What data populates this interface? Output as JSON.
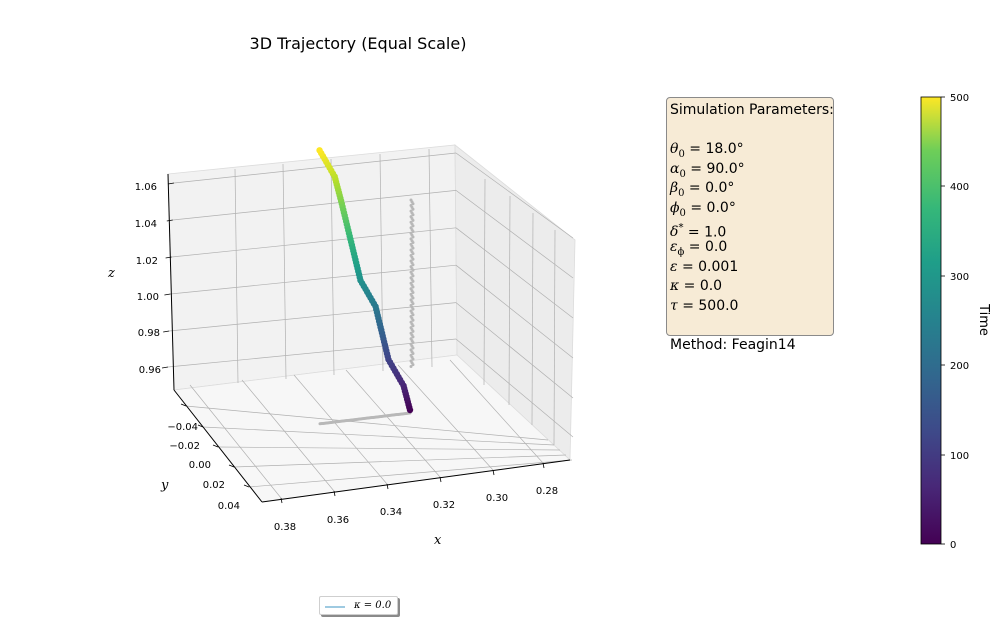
{
  "chart_data": {
    "type": "scatter",
    "projection": "3d",
    "title": "3D Trajectory (Equal Scale)",
    "xlabel": "x",
    "ylabel": "y",
    "zlabel": "z",
    "x_ticks": [
      "0.38",
      "0.36",
      "0.34",
      "0.32",
      "0.30",
      "0.28"
    ],
    "y_ticks": [
      "−0.04",
      "−0.02",
      "0.00",
      "0.02",
      "0.04"
    ],
    "z_ticks": [
      "0.96",
      "0.98",
      "1.00",
      "1.02",
      "1.04",
      "1.06"
    ],
    "xlim": [
      0.27,
      0.385
    ],
    "ylim": [
      -0.055,
      0.055
    ],
    "zlim": [
      0.945,
      1.065
    ],
    "grid": true,
    "colormap": "viridis",
    "color_by": "time",
    "series": [
      {
        "name": "κ = 0.0",
        "time": [
          0,
          50,
          100,
          150,
          200,
          250,
          300,
          350,
          400,
          450,
          500
        ],
        "x": [
          0.32,
          0.321,
          0.323,
          0.324,
          0.325,
          0.327,
          0.328,
          0.329,
          0.33,
          0.331,
          0.333
        ],
        "y": [
          0.0,
          -0.002,
          -0.004,
          -0.006,
          -0.008,
          -0.01,
          -0.012,
          -0.014,
          -0.016,
          -0.018,
          -0.02
        ],
        "z": [
          0.955,
          0.963,
          0.972,
          0.981,
          0.99,
          0.999,
          1.008,
          1.017,
          1.026,
          1.034,
          1.043
        ]
      }
    ],
    "projection_shadows": true,
    "shadow_color": "#b8b8b8",
    "colorbar": {
      "label": "Time",
      "ticks": [
        "0",
        "100",
        "200",
        "300",
        "400",
        "500"
      ],
      "range": [
        0,
        500
      ]
    },
    "legend": {
      "placement": "bottom-center",
      "entries": [
        "κ = 0.0"
      ],
      "line_color": "#9ecae1"
    }
  },
  "params": {
    "heading": "Simulation Parameters:",
    "theta0": " = 18.0°",
    "alpha0": " = 90.0°",
    "beta0": " = 0.0°",
    "phi0": " = 0.0°",
    "delta": " = 1.0",
    "eps_phi": " = 0.0",
    "eps": " = 0.001",
    "kappa": " = 0.0",
    "tau": " = 500.0",
    "method": "Method: Feagin14"
  },
  "colors": {
    "box_fill": "#f7ebd6",
    "pane": "#f4f4f4",
    "grid": "#b0b0b0"
  }
}
